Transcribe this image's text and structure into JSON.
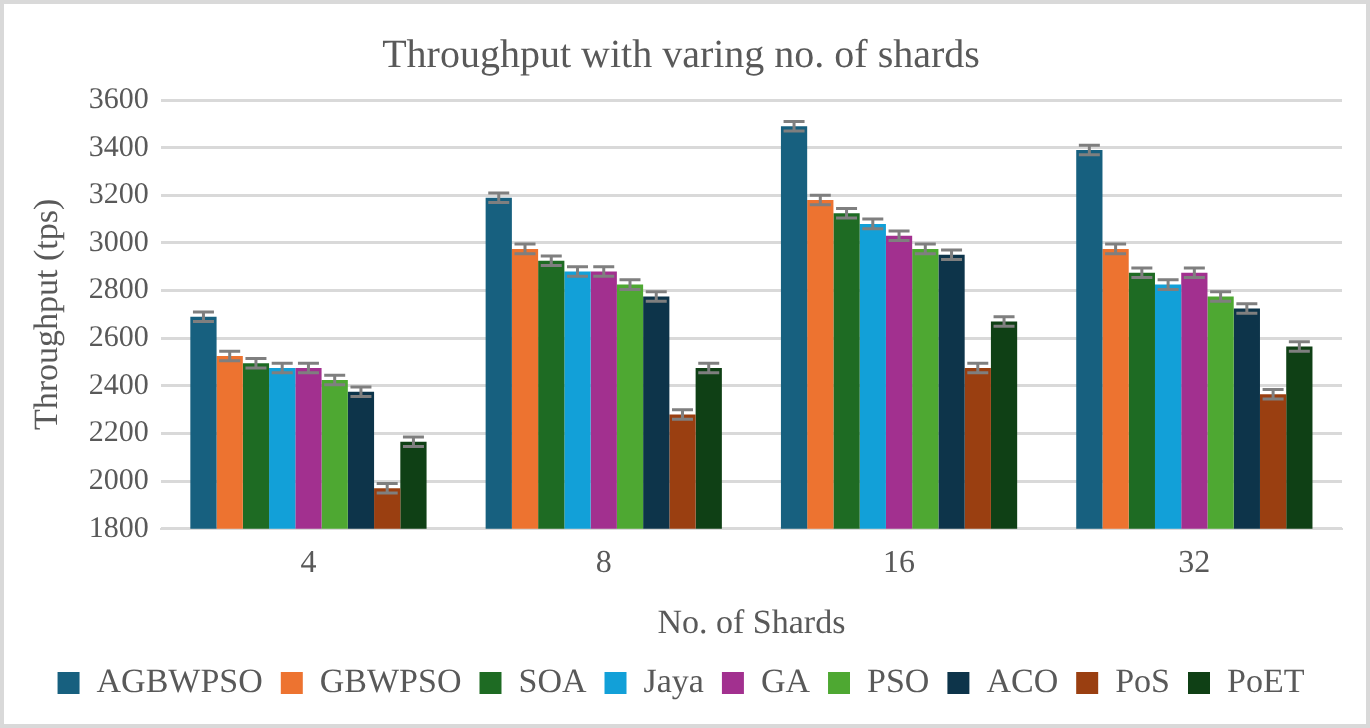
{
  "chart_data": {
    "type": "bar",
    "title": "Throughput with varing no. of shards",
    "xlabel": "No. of Shards",
    "ylabel": "Throughput (tps)",
    "categories": [
      "4",
      "8",
      "16",
      "32"
    ],
    "series": [
      {
        "name": "AGBWPSO",
        "color": "#17607f",
        "values": [
          2690,
          3190,
          3490,
          3390
        ],
        "errors": [
          20,
          20,
          20,
          20
        ]
      },
      {
        "name": "GBWPSO",
        "color": "#ed7330",
        "values": [
          2525,
          2975,
          3180,
          2975
        ],
        "errors": [
          20,
          20,
          20,
          20
        ]
      },
      {
        "name": "SOA",
        "color": "#1e6b23",
        "values": [
          2495,
          2925,
          3125,
          2875
        ],
        "errors": [
          20,
          20,
          20,
          20
        ]
      },
      {
        "name": "Jaya",
        "color": "#12a0d8",
        "values": [
          2475,
          2880,
          3080,
          2825
        ],
        "errors": [
          20,
          20,
          20,
          20
        ]
      },
      {
        "name": "GA",
        "color": "#a2308f",
        "values": [
          2475,
          2880,
          3030,
          2875
        ],
        "errors": [
          20,
          20,
          20,
          20
        ]
      },
      {
        "name": "PSO",
        "color": "#4ea832",
        "values": [
          2425,
          2825,
          2975,
          2775
        ],
        "errors": [
          20,
          20,
          20,
          20
        ]
      },
      {
        "name": "ACO",
        "color": "#0d344a",
        "values": [
          2375,
          2775,
          2950,
          2725
        ],
        "errors": [
          20,
          20,
          20,
          20
        ]
      },
      {
        "name": "PoS",
        "color": "#9a3f11",
        "values": [
          1970,
          2280,
          2475,
          2365
        ],
        "errors": [
          20,
          20,
          20,
          20
        ]
      },
      {
        "name": "PoET",
        "color": "#0f4015",
        "values": [
          2165,
          2475,
          2670,
          2565
        ],
        "errors": [
          20,
          20,
          20,
          20
        ]
      }
    ],
    "ylim": [
      1800,
      3600
    ],
    "yticks": [
      1800,
      2000,
      2200,
      2400,
      2600,
      2800,
      3000,
      3200,
      3400,
      3600
    ],
    "grid": "y",
    "legend": "bottom"
  }
}
